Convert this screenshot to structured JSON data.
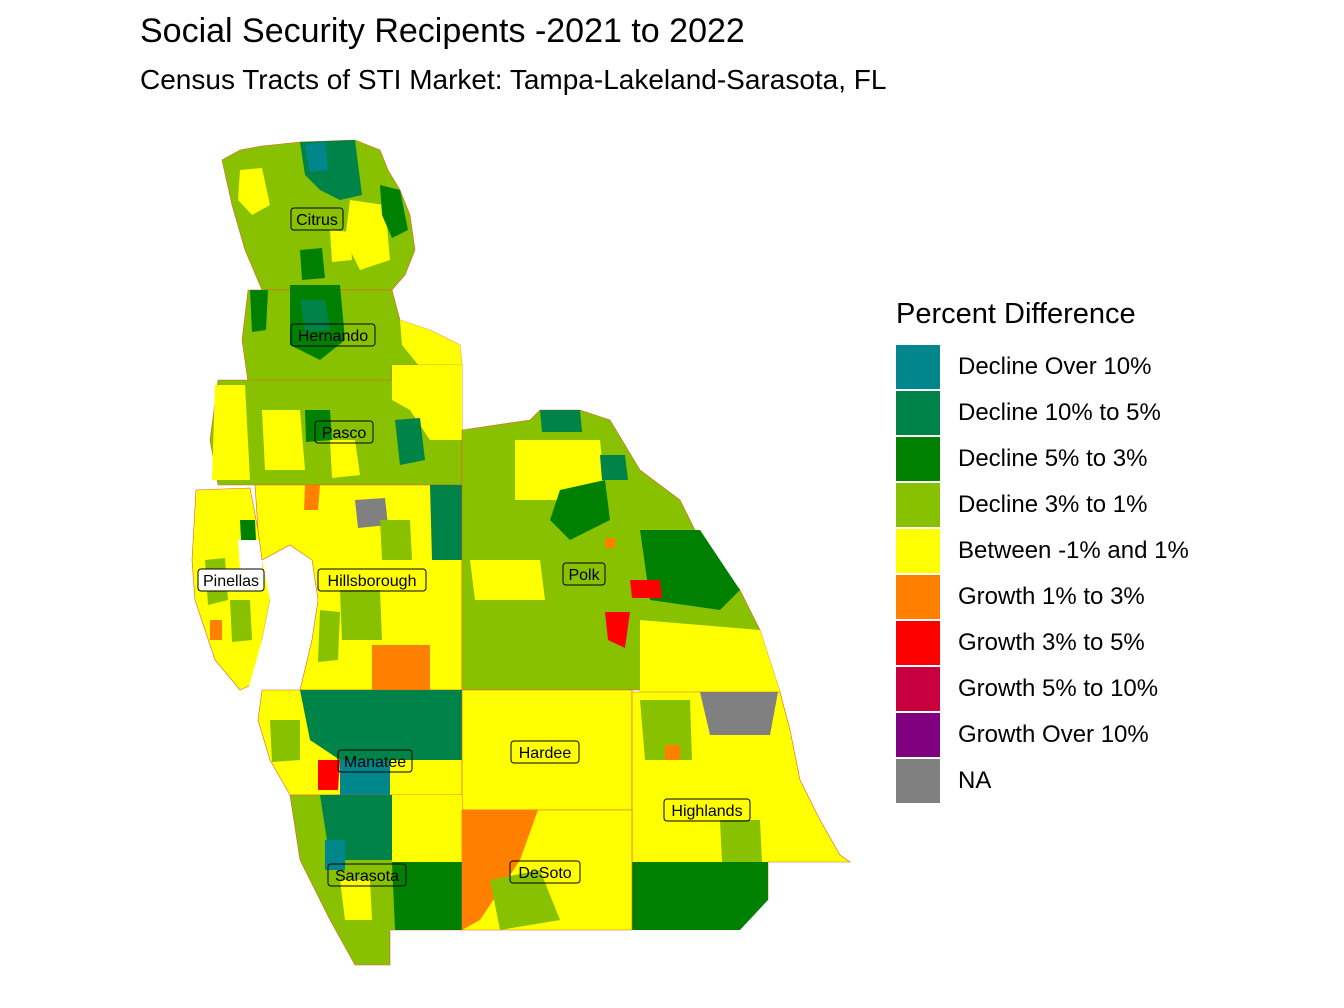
{
  "title": "Social Security Recipents -2021 to 2022",
  "subtitle": "Census Tracts of STI Market: Tampa-Lakeland-Sarasota, FL",
  "legend": {
    "title": "Percent Difference",
    "items": [
      {
        "label": "Decline Over 10%",
        "color": "#00868b"
      },
      {
        "label": "Decline 10% to 5%",
        "color": "#008348"
      },
      {
        "label": "Decline 5% to 3%",
        "color": "#008000"
      },
      {
        "label": "Decline 3% to 1%",
        "color": "#88c100"
      },
      {
        "label": "Between -1% and 1%",
        "color": "#ffff00"
      },
      {
        "label": "Growth 1% to 3%",
        "color": "#ff8000"
      },
      {
        "label": "Growth 3% to 5%",
        "color": "#ff0000"
      },
      {
        "label": "Growth 5% to 10%",
        "color": "#c80040"
      },
      {
        "label": "Growth Over 10%",
        "color": "#800080"
      },
      {
        "label": "NA",
        "color": "#808080"
      }
    ]
  },
  "counties": {
    "citrus": "Citrus",
    "hernando": "Hernando",
    "pasco": "Pasco",
    "pinellas": "Pinellas",
    "hillsborough": "Hillsborough",
    "polk": "Polk",
    "manatee": "Manatee",
    "hardee": "Hardee",
    "highlands": "Highlands",
    "sarasota": "Sarasota",
    "desoto": "DeSoto"
  }
}
